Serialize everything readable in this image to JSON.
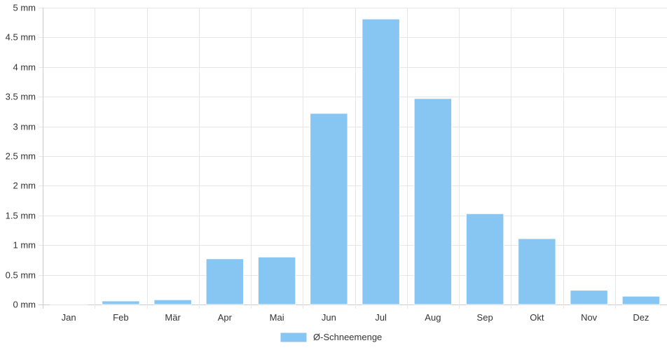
{
  "chart_data": {
    "type": "bar",
    "categories": [
      "Jan",
      "Feb",
      "Mär",
      "Apr",
      "Mai",
      "Jun",
      "Jul",
      "Aug",
      "Sep",
      "Okt",
      "Nov",
      "Dez"
    ],
    "series": [
      {
        "name": "Ø-Schneemenge",
        "values": [
          0.01,
          0.06,
          0.08,
          0.77,
          0.8,
          3.22,
          4.81,
          3.47,
          1.53,
          1.11,
          0.24,
          0.14
        ]
      }
    ],
    "y_ticks": [
      "0 mm",
      "0.5 mm",
      "1 mm",
      "1.5 mm",
      "2 mm",
      "2.5 mm",
      "3 mm",
      "3.5 mm",
      "4 mm",
      "4.5 mm",
      "5 mm"
    ],
    "ylim": [
      0,
      5
    ],
    "y_unit": "mm",
    "grid": true,
    "legend_position": "bottom",
    "colors": {
      "bar": "#87c6f2",
      "grid": "#e6e6e6",
      "axis": "#cccccc",
      "text": "#333333"
    }
  }
}
